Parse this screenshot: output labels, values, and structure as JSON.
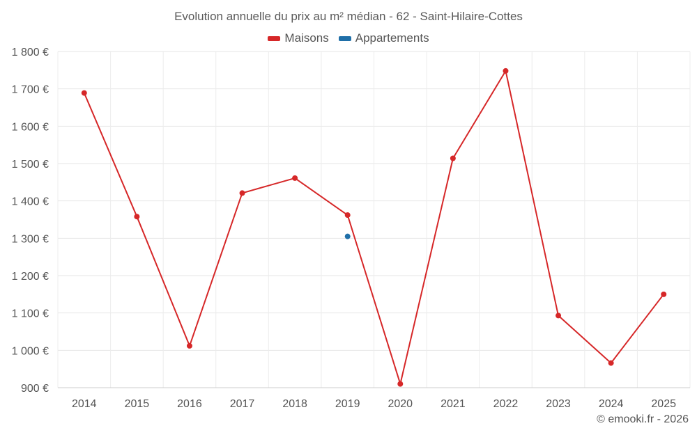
{
  "chart_data": {
    "type": "line",
    "title": "Evolution annuelle du prix au m² médian - 62 - Saint-Hilaire-Cottes",
    "xlabel": "",
    "ylabel": "",
    "categories": [
      "2014",
      "2015",
      "2016",
      "2017",
      "2018",
      "2019",
      "2020",
      "2021",
      "2022",
      "2023",
      "2024",
      "2025"
    ],
    "ylim": [
      900,
      1800
    ],
    "yticks": [
      900,
      1000,
      1100,
      1200,
      1300,
      1400,
      1500,
      1600,
      1700,
      1800
    ],
    "ytick_labels": [
      "900 €",
      "1 000 €",
      "1 100 €",
      "1 200 €",
      "1 300 €",
      "1 400 €",
      "1 500 €",
      "1 600 €",
      "1 700 €",
      "1 800 €"
    ],
    "grid": true,
    "legend_position": "top-center",
    "series": [
      {
        "name": "Maisons",
        "color": "#d62728",
        "values": [
          1689,
          1358,
          1012,
          1421,
          1461,
          1362,
          910,
          1514,
          1748,
          1093,
          966,
          1150
        ]
      },
      {
        "name": "Appartements",
        "color": "#1f6fa8",
        "values": [
          null,
          null,
          null,
          null,
          null,
          1305,
          null,
          null,
          null,
          null,
          null,
          null
        ]
      }
    ]
  },
  "footer": {
    "credit": "© emooki.fr - 2026"
  }
}
